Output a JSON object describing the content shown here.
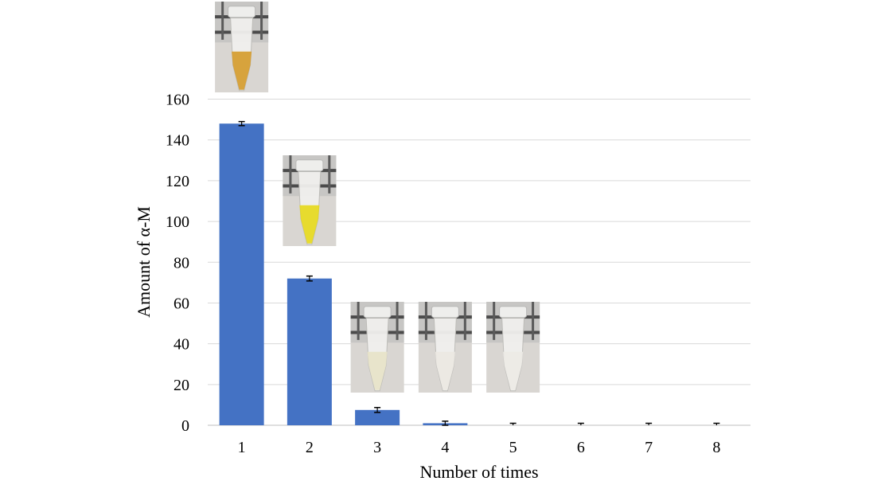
{
  "chart_data": {
    "type": "bar",
    "categories": [
      "1",
      "2",
      "3",
      "4",
      "5",
      "6",
      "7",
      "8"
    ],
    "values": [
      148,
      72,
      7.5,
      1,
      0,
      0,
      0,
      0
    ],
    "errors": [
      1.0,
      1.2,
      1.2,
      1.0,
      0.8,
      0.8,
      0.8,
      0.8
    ],
    "xlabel": "Number of times",
    "ylabel": "Amount of α-M",
    "ylim": [
      0,
      160
    ],
    "yticks": [
      0,
      20,
      40,
      60,
      80,
      100,
      120,
      140,
      160
    ],
    "grid": true,
    "bar_color": "#4472c4",
    "photo_insets": [
      {
        "category": "1",
        "liquid_color": "#d49a2a"
      },
      {
        "category": "2",
        "liquid_color": "#e6d81a"
      },
      {
        "category": "3",
        "liquid_color": "#e7e2c8"
      },
      {
        "category": "4",
        "liquid_color": "#ebe8e2"
      },
      {
        "category": "5",
        "liquid_color": "#eceae6"
      }
    ]
  }
}
